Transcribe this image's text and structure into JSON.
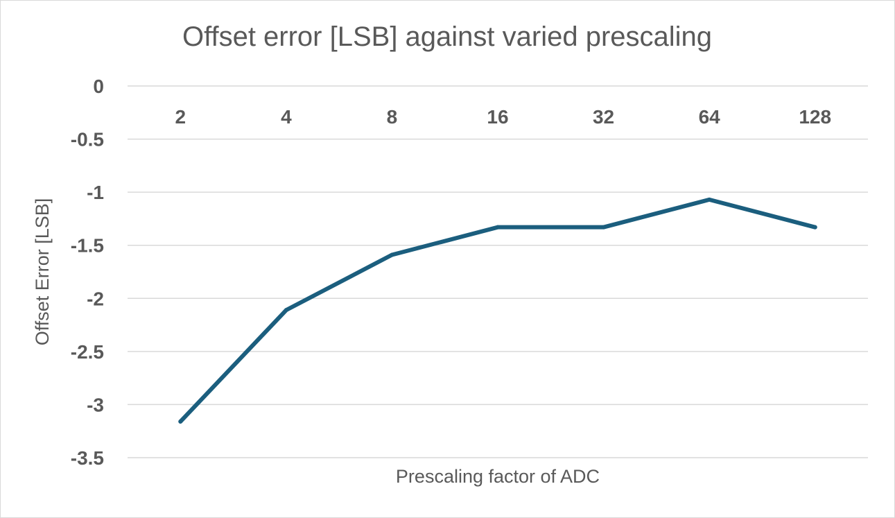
{
  "chart_data": {
    "type": "line",
    "title": "Offset error [LSB] against varied prescaling",
    "xlabel": "Prescaling factor of ADC",
    "ylabel": "Offset Error [LSB]",
    "categories": [
      "2",
      "4",
      "8",
      "16",
      "32",
      "64",
      "128"
    ],
    "series": [
      {
        "values": [
          -3.16,
          -2.11,
          -1.59,
          -1.33,
          -1.33,
          -1.07,
          -1.33
        ],
        "color": "#1b5e7e"
      }
    ],
    "ylim": [
      -3.5,
      0
    ],
    "yticks": [
      {
        "value": 0,
        "label": "0"
      },
      {
        "value": -0.5,
        "label": "-0.5"
      },
      {
        "value": -1,
        "label": "-1"
      },
      {
        "value": -1.5,
        "label": "-1.5"
      },
      {
        "value": -2,
        "label": "-2"
      },
      {
        "value": -2.5,
        "label": "-2.5"
      },
      {
        "value": -3,
        "label": "-3"
      },
      {
        "value": -3.5,
        "label": "-3.5"
      }
    ],
    "grid": true,
    "legend": "none",
    "x_axis_position": "top"
  }
}
